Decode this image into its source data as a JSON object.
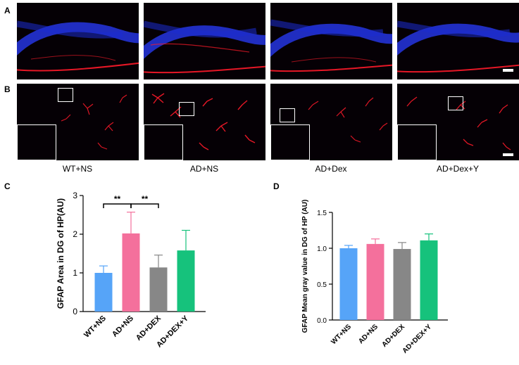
{
  "panels": {
    "a": "A",
    "b": "B",
    "c": "C",
    "d": "D"
  },
  "group_labels": [
    "WT+NS",
    "AD+NS",
    "AD+Dex",
    "AD+Dex+Y"
  ],
  "colors": {
    "dapi": "#2a3cff",
    "gfap": "#ff1a2a",
    "background": "#050005"
  },
  "chart_data": [
    {
      "type": "bar",
      "panel": "C",
      "categories": [
        "WT+NS",
        "AD+NS",
        "AD+DEX",
        "AD+DEX+Y"
      ],
      "values": [
        1.0,
        2.02,
        1.14,
        1.58
      ],
      "errors": [
        0.18,
        0.55,
        0.32,
        0.52
      ],
      "colors": [
        "#56a4f8",
        "#f4709c",
        "#878787",
        "#16c27c"
      ],
      "ylabel": "GFAP Area in DG of HP(AU)",
      "ylim": [
        0,
        3
      ],
      "yticks": [
        "0",
        "1",
        "2",
        "3"
      ],
      "significance": [
        {
          "from": 0,
          "to": 1,
          "label": "**"
        },
        {
          "from": 1,
          "to": 2,
          "label": "**"
        }
      ]
    },
    {
      "type": "bar",
      "panel": "D",
      "categories": [
        "WT+NS",
        "AD+NS",
        "AD+DEX",
        "AD+DEX+Y"
      ],
      "values": [
        1.0,
        1.06,
        0.99,
        1.11
      ],
      "errors": [
        0.04,
        0.07,
        0.09,
        0.09
      ],
      "colors": [
        "#56a4f8",
        "#f4709c",
        "#878787",
        "#16c27c"
      ],
      "ylabel": "GFAP Mean gray value in DG of HP (AU)",
      "ylim": [
        0,
        1.5
      ],
      "yticks": [
        "0.0",
        "0.5",
        "1.0",
        "1.5"
      ]
    }
  ]
}
